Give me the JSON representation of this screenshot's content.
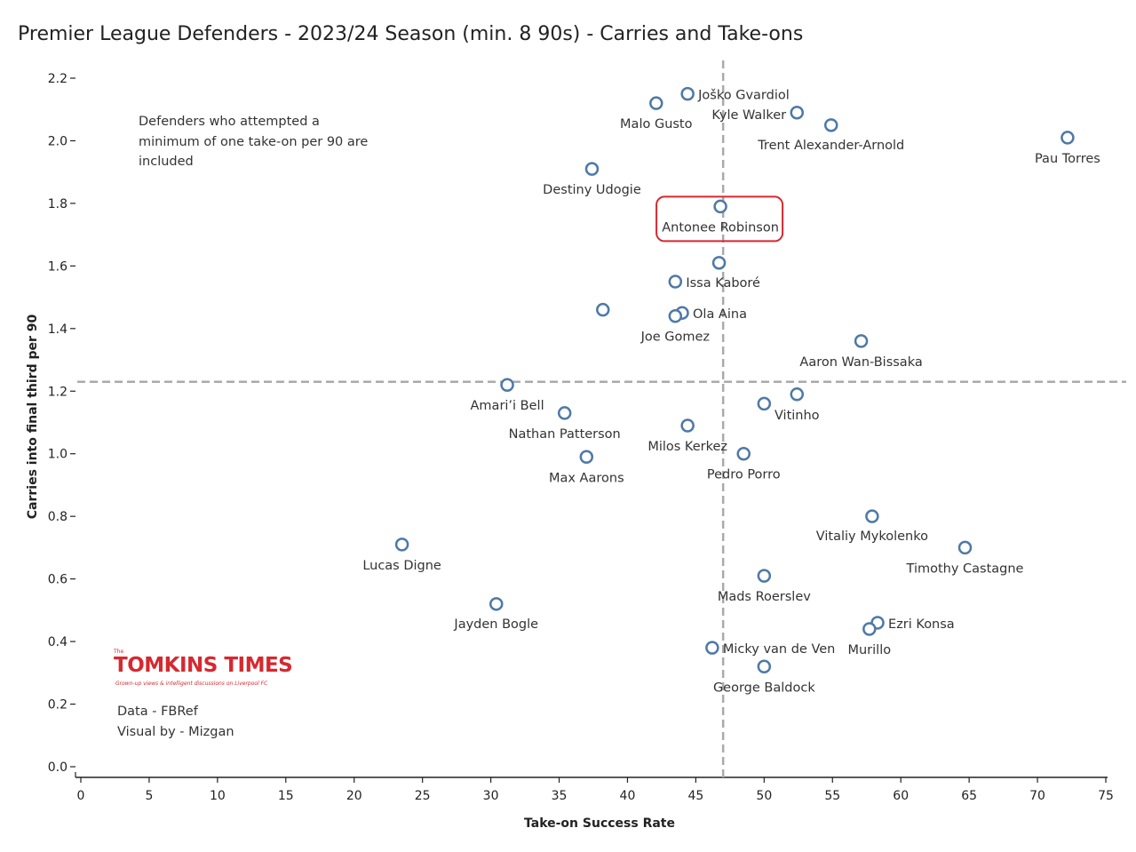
{
  "title": "Premier League Defenders - 2023/24 Season (min. 8 90s) - Carries and Take-ons",
  "note": "Defenders who attempted a minimum of one take-on per 90 are included",
  "credits": {
    "data": "Data - FBRef",
    "visual": "Visual by - Mizgan"
  },
  "logo": {
    "small": "The",
    "name": "TOMKINS TIMES",
    "tagline": "Grown-up views & intelligent discussions on Liverpool FC"
  },
  "colors": {
    "marker": "#4e79a7",
    "reference_line": "#aaaaaa",
    "highlight": "#d7282f",
    "axis_text": "#222222"
  },
  "chart_data": {
    "type": "scatter",
    "xlabel": "Take-on Success Rate",
    "ylabel": "Carries into final third per 90",
    "xlim": [
      0,
      75
    ],
    "ylim": [
      0.0,
      2.2
    ],
    "xticks": [
      0,
      5,
      10,
      15,
      20,
      25,
      30,
      35,
      40,
      45,
      50,
      55,
      60,
      65,
      70,
      75
    ],
    "yticks": [
      "0.0",
      "0.2",
      "0.4",
      "0.6",
      "0.8",
      "1.0",
      "1.2",
      "1.4",
      "1.6",
      "1.8",
      "2.0",
      "2.2"
    ],
    "reference_lines": {
      "x": 47.0,
      "y": 1.23
    },
    "highlighted": "Antonee Robinson",
    "points": [
      {
        "name": "Joško Gvardiol",
        "x": 44.4,
        "y": 2.15
      },
      {
        "name": "Malo Gusto",
        "x": 42.1,
        "y": 2.12
      },
      {
        "name": "Kyle Walker",
        "x": 52.4,
        "y": 2.09
      },
      {
        "name": "Trent Alexander-Arnold",
        "x": 54.9,
        "y": 2.05
      },
      {
        "name": "Pau Torres",
        "x": 72.2,
        "y": 2.01
      },
      {
        "name": "Destiny Udogie",
        "x": 37.4,
        "y": 1.91
      },
      {
        "name": "Antonee Robinson",
        "x": 46.8,
        "y": 1.79
      },
      {
        "name": "",
        "x": 46.7,
        "y": 1.61
      },
      {
        "name": "Issa Kaboré",
        "x": 43.5,
        "y": 1.55
      },
      {
        "name": "",
        "x": 38.2,
        "y": 1.46
      },
      {
        "name": "Ola Aina",
        "x": 44.0,
        "y": 1.45
      },
      {
        "name": "Joe Gomez",
        "x": 43.5,
        "y": 1.44
      },
      {
        "name": "Aaron Wan-Bissaka",
        "x": 57.1,
        "y": 1.36
      },
      {
        "name": "Amari’i Bell",
        "x": 31.2,
        "y": 1.22
      },
      {
        "name": "Vitinho",
        "x": 52.4,
        "y": 1.19
      },
      {
        "name": "",
        "x": 50.0,
        "y": 1.16
      },
      {
        "name": "Nathan Patterson",
        "x": 35.4,
        "y": 1.13
      },
      {
        "name": "Milos Kerkez",
        "x": 44.4,
        "y": 1.09
      },
      {
        "name": "Pedro Porro",
        "x": 48.5,
        "y": 1.0
      },
      {
        "name": "Max Aarons",
        "x": 37.0,
        "y": 0.99
      },
      {
        "name": "Vitaliy Mykolenko",
        "x": 57.9,
        "y": 0.8
      },
      {
        "name": "Lucas Digne",
        "x": 23.5,
        "y": 0.71
      },
      {
        "name": "Timothy Castagne",
        "x": 64.7,
        "y": 0.7
      },
      {
        "name": "Mads Roerslev",
        "x": 50.0,
        "y": 0.61
      },
      {
        "name": "Jayden Bogle",
        "x": 30.4,
        "y": 0.52
      },
      {
        "name": "Ezri Konsa",
        "x": 58.3,
        "y": 0.46
      },
      {
        "name": "Murillo",
        "x": 57.7,
        "y": 0.44
      },
      {
        "name": "Micky van de Ven",
        "x": 46.2,
        "y": 0.38
      },
      {
        "name": "George Baldock",
        "x": 50.0,
        "y": 0.32
      }
    ]
  }
}
